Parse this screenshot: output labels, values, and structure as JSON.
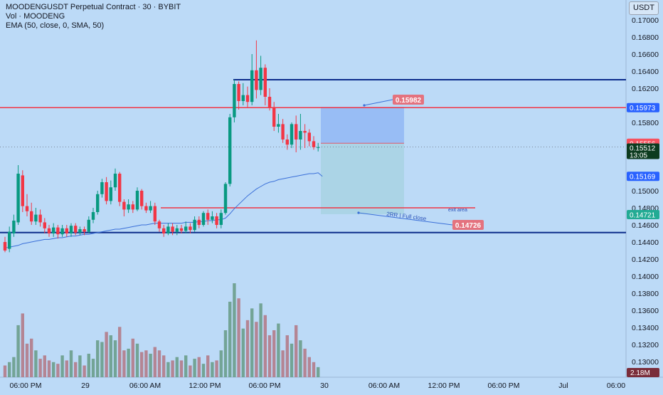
{
  "header": {
    "title": "MOODENGUSDT Perpetual Contract · 30 · BYBIT",
    "volume": "Vol · MOODENG",
    "ema": "EMA (50, close, 0, SMA, 50)",
    "currency": "USDT"
  },
  "chart_data": {
    "type": "candlestick",
    "ylim": [
      0.1292,
      0.1708
    ],
    "price_ticks": [
      "0.17000",
      "0.16800",
      "0.16600",
      "0.16400",
      "0.16200",
      "0.15800",
      "0.15000",
      "0.14800",
      "0.14600",
      "0.14400",
      "0.14200",
      "0.14000",
      "0.13800",
      "0.13600",
      "0.13400",
      "0.13200",
      "0.13000"
    ],
    "time_ticks": [
      "06:00 PM",
      "29",
      "06:00 AM",
      "12:00 PM",
      "06:00 PM",
      "30",
      "06:00 AM",
      "12:00 PM",
      "06:00 PM",
      "Jul",
      "06:00"
    ],
    "price_badges": [
      {
        "label": "0.15973",
        "color": "#2962ff",
        "price": 0.15973
      },
      {
        "label": "0.15556",
        "color": "#f7525f",
        "price": 0.15556
      },
      {
        "label": "0.15512",
        "sub": "13:05",
        "color": "#0c3b1f",
        "price": 0.15512
      },
      {
        "label": "0.15169",
        "color": "#2962ff",
        "price": 0.15169
      },
      {
        "label": "0.14721",
        "color": "#22ab94",
        "price": 0.14721
      }
    ],
    "volume_badge": "2.18M",
    "horizontal_lines": [
      {
        "price": 0.163,
        "color": "#0d2d8c",
        "from_bar": 40
      },
      {
        "price": 0.15973,
        "color": "#f23645",
        "from_bar": -1
      },
      {
        "price": 0.148,
        "color": "#f23645",
        "from_bar": 28,
        "to_bar": 81
      },
      {
        "price": 0.1451,
        "color": "#0d2d8c",
        "from_bar": 0
      }
    ],
    "callouts": [
      {
        "label": "0.15982",
        "price": 0.15982
      },
      {
        "label": "0.14726",
        "price": 0.14726
      }
    ],
    "annotations": [
      "2RR | Full close",
      "exit area"
    ],
    "position": {
      "entry": 0.15556,
      "stop": 0.15982,
      "target": 0.14726
    },
    "candles": [
      [
        0.144,
        0.143,
        0.1446,
        0.1428
      ],
      [
        0.1432,
        0.1452,
        0.1458,
        0.1428
      ],
      [
        0.145,
        0.1465,
        0.1472,
        0.1446
      ],
      [
        0.1463,
        0.152,
        0.153,
        0.146
      ],
      [
        0.1518,
        0.1482,
        0.1524,
        0.1475
      ],
      [
        0.1482,
        0.1476,
        0.1496,
        0.147
      ],
      [
        0.1476,
        0.1464,
        0.1486,
        0.146
      ],
      [
        0.1464,
        0.1472,
        0.148,
        0.146
      ],
      [
        0.1472,
        0.1463,
        0.1478,
        0.1458
      ],
      [
        0.1463,
        0.1456,
        0.1468,
        0.145
      ],
      [
        0.1456,
        0.145,
        0.146,
        0.1446
      ],
      [
        0.145,
        0.1457,
        0.1462,
        0.1446
      ],
      [
        0.1457,
        0.1449,
        0.146,
        0.1444
      ],
      [
        0.1449,
        0.1456,
        0.146,
        0.1446
      ],
      [
        0.1456,
        0.145,
        0.146,
        0.1446
      ],
      [
        0.145,
        0.1459,
        0.1462,
        0.1446
      ],
      [
        0.1459,
        0.1451,
        0.1462,
        0.1448
      ],
      [
        0.1451,
        0.1455,
        0.1458,
        0.1448
      ],
      [
        0.1455,
        0.1452,
        0.1458,
        0.1448
      ],
      [
        0.1452,
        0.1466,
        0.147,
        0.145
      ],
      [
        0.1466,
        0.1475,
        0.148,
        0.1462
      ],
      [
        0.1475,
        0.1496,
        0.15,
        0.1472
      ],
      [
        0.1496,
        0.151,
        0.1514,
        0.1492
      ],
      [
        0.151,
        0.1488,
        0.1516,
        0.1484
      ],
      [
        0.1488,
        0.1504,
        0.1512,
        0.1484
      ],
      [
        0.1504,
        0.152,
        0.1526,
        0.15
      ],
      [
        0.152,
        0.1487,
        0.1522,
        0.1482
      ],
      [
        0.1487,
        0.1478,
        0.149,
        0.147
      ],
      [
        0.1478,
        0.1484,
        0.149,
        0.1474
      ],
      [
        0.1484,
        0.1478,
        0.1488,
        0.1474
      ],
      [
        0.1478,
        0.15,
        0.1504,
        0.1476
      ],
      [
        0.15,
        0.1482,
        0.1502,
        0.1478
      ],
      [
        0.1482,
        0.1477,
        0.1486,
        0.1474
      ],
      [
        0.1477,
        0.1482,
        0.1488,
        0.1474
      ],
      [
        0.1482,
        0.1464,
        0.1486,
        0.146
      ],
      [
        0.1464,
        0.1456,
        0.1466,
        0.1452
      ],
      [
        0.1456,
        0.145,
        0.146,
        0.1446
      ],
      [
        0.145,
        0.1458,
        0.1462,
        0.1448
      ],
      [
        0.1458,
        0.1452,
        0.1462,
        0.1448
      ],
      [
        0.1452,
        0.1456,
        0.146,
        0.1448
      ],
      [
        0.1456,
        0.1453,
        0.146,
        0.145
      ],
      [
        0.1453,
        0.1458,
        0.1464,
        0.145
      ],
      [
        0.1458,
        0.1454,
        0.1462,
        0.145
      ],
      [
        0.1454,
        0.1466,
        0.147,
        0.1452
      ],
      [
        0.1466,
        0.146,
        0.147,
        0.1456
      ],
      [
        0.146,
        0.1474,
        0.1476,
        0.1458
      ],
      [
        0.1474,
        0.1466,
        0.1478,
        0.146
      ],
      [
        0.1466,
        0.147,
        0.1476,
        0.1462
      ],
      [
        0.147,
        0.146,
        0.1474,
        0.1456
      ],
      [
        0.146,
        0.1474,
        0.1478,
        0.1456
      ],
      [
        0.1474,
        0.1508,
        0.151,
        0.1472
      ],
      [
        0.1508,
        0.1586,
        0.159,
        0.1505
      ],
      [
        0.1586,
        0.1625,
        0.163,
        0.158
      ],
      [
        0.1625,
        0.1605,
        0.1628,
        0.1595
      ],
      [
        0.1605,
        0.1612,
        0.1626,
        0.16
      ],
      [
        0.1612,
        0.1604,
        0.1622,
        0.1598
      ],
      [
        0.1604,
        0.1641,
        0.166,
        0.16
      ],
      [
        0.1641,
        0.1618,
        0.1676,
        0.1608
      ],
      [
        0.1618,
        0.1644,
        0.1658,
        0.1612
      ],
      [
        0.1644,
        0.161,
        0.1648,
        0.16
      ],
      [
        0.161,
        0.1598,
        0.162,
        0.1594
      ],
      [
        0.1598,
        0.1575,
        0.1604,
        0.157
      ],
      [
        0.1575,
        0.1578,
        0.159,
        0.1568
      ],
      [
        0.1578,
        0.156,
        0.1584,
        0.1556
      ],
      [
        0.156,
        0.1554,
        0.1566,
        0.1548
      ],
      [
        0.1554,
        0.1578,
        0.158,
        0.155
      ],
      [
        0.1578,
        0.156,
        0.1588,
        0.1545
      ],
      [
        0.156,
        0.157,
        0.159,
        0.1548
      ],
      [
        0.157,
        0.1568,
        0.1578,
        0.155
      ],
      [
        0.1568,
        0.1558,
        0.1572,
        0.1552
      ],
      [
        0.1558,
        0.1551,
        0.1564,
        0.1548
      ],
      [
        0.1551,
        0.1551,
        0.1556,
        0.1546
      ]
    ],
    "ema": [
      0.1433,
      0.1434,
      0.1435,
      0.1436,
      0.1438,
      0.1439,
      0.144,
      0.1441,
      0.1442,
      0.1443,
      0.1443,
      0.1444,
      0.1445,
      0.1445,
      0.1446,
      0.1447,
      0.1447,
      0.1448,
      0.1449,
      0.1449,
      0.145,
      0.1451,
      0.1452,
      0.1453,
      0.1454,
      0.1455,
      0.1455,
      0.1456,
      0.1457,
      0.1458,
      0.1459,
      0.146,
      0.146,
      0.1461,
      0.1462,
      0.1462,
      0.1462,
      0.1462,
      0.1462,
      0.1462,
      0.1462,
      0.1463,
      0.1463,
      0.1463,
      0.1464,
      0.1464,
      0.1465,
      0.1465,
      0.1466,
      0.1466,
      0.1468,
      0.1473,
      0.1479,
      0.1484,
      0.1489,
      0.1494,
      0.1498,
      0.1502,
      0.1505,
      0.1508,
      0.151,
      0.1511,
      0.1513,
      0.1514,
      0.1515,
      0.1516,
      0.1517,
      0.1518,
      0.1519,
      0.152,
      0.152,
      0.1521
    ],
    "volume": [
      0.7,
      0.9,
      1.2,
      3.1,
      3.8,
      2.0,
      2.3,
      1.6,
      1.1,
      1.3,
      1.0,
      0.9,
      0.8,
      1.3,
      1.0,
      1.6,
      0.9,
      1.3,
      0.7,
      1.4,
      1.1,
      2.2,
      2.1,
      2.7,
      2.5,
      2.2,
      3.0,
      1.6,
      1.7,
      2.3,
      2.0,
      1.5,
      1.6,
      1.4,
      1.8,
      1.6,
      1.3,
      0.9,
      1.0,
      1.2,
      1.0,
      1.3,
      0.7,
      1.1,
      1.2,
      0.8,
      1.3,
      0.9,
      1.0,
      1.6,
      2.8,
      4.5,
      5.6,
      4.7,
      2.9,
      3.4,
      4.1,
      3.3,
      4.4,
      3.7,
      2.5,
      2.8,
      3.2,
      1.6,
      2.5,
      2.0,
      3.1,
      2.2,
      1.7,
      1.2,
      0.9,
      0.6
    ]
  }
}
